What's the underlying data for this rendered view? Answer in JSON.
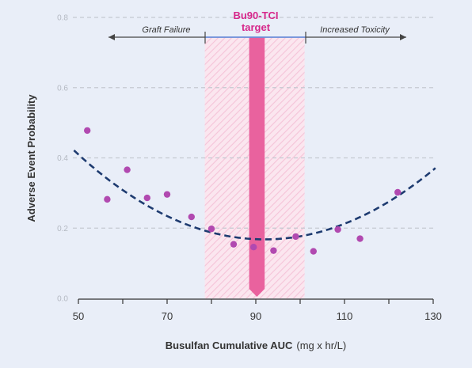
{
  "chart_data": {
    "type": "scatter",
    "title": "",
    "xlabel": "Busulfan Cumulative AUC",
    "xlabel_unit": "(mg x hr/L)",
    "ylabel": "Adverse Event Probability",
    "xlim": [
      50,
      130
    ],
    "ylim": [
      0,
      0.8
    ],
    "x_ticks": [
      50,
      70,
      90,
      110,
      130
    ],
    "y_ticks": [
      0.0,
      0.2,
      0.4,
      0.6,
      0.8
    ],
    "y_tick_labels": [
      "0.0",
      "0.2",
      "0.4",
      "0.6",
      "0.8"
    ],
    "grid": "horizontal dashed",
    "points": [
      {
        "x": 52,
        "y": 0.478
      },
      {
        "x": 56.5,
        "y": 0.282
      },
      {
        "x": 61,
        "y": 0.366
      },
      {
        "x": 65.5,
        "y": 0.286
      },
      {
        "x": 70,
        "y": 0.296
      },
      {
        "x": 75.5,
        "y": 0.232
      },
      {
        "x": 80,
        "y": 0.198
      },
      {
        "x": 85,
        "y": 0.154
      },
      {
        "x": 89.5,
        "y": 0.146
      },
      {
        "x": 94,
        "y": 0.136
      },
      {
        "x": 99,
        "y": 0.176
      },
      {
        "x": 103,
        "y": 0.134
      },
      {
        "x": 108.5,
        "y": 0.196
      },
      {
        "x": 113.5,
        "y": 0.17
      },
      {
        "x": 122,
        "y": 0.302
      }
    ],
    "fit_curve": {
      "style": "dashed",
      "vertex_x": 92,
      "vertex_y": 0.168,
      "a": 0.000137
    },
    "target_band": {
      "x_min": 78.5,
      "x_max": 101
    },
    "target_center": {
      "x_min": 88.5,
      "x_max": 92
    },
    "annotations": {
      "target_label_line1": "Bu90-TCI",
      "target_label_line2": "target",
      "left_region": "Graft Failure",
      "right_region": "Increased Toxicity"
    },
    "colors": {
      "points": "#b149b0",
      "fit_curve": "#1e3b70",
      "target_center": "#e9629e",
      "target_band": "#f7cde0",
      "target_label": "#d6278a",
      "target_line": "#6a8cd8"
    }
  }
}
